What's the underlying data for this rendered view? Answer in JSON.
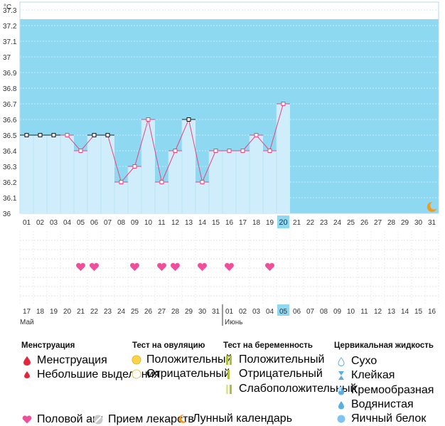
{
  "chart_data": {
    "type": "line",
    "y_unit": "°C",
    "y_ticks": [
      "37.3",
      "37.2",
      "37.1",
      "37",
      "36.9",
      "36.8",
      "36.7",
      "36.6",
      "36.5",
      "36.4",
      "36.3",
      "36.2",
      "36.1",
      "36"
    ],
    "ylim": [
      36.0,
      37.35
    ],
    "cycle_days": [
      "01",
      "02",
      "03",
      "04",
      "05",
      "06",
      "07",
      "08",
      "09",
      "10",
      "11",
      "12",
      "13",
      "14",
      "15",
      "16",
      "17",
      "18",
      "19",
      "20",
      "21",
      "22",
      "23",
      "24",
      "25",
      "26",
      "27",
      "28",
      "29",
      "30",
      "31"
    ],
    "current_day": "20",
    "temperatures": [
      36.5,
      36.5,
      36.5,
      36.5,
      36.4,
      36.5,
      36.5,
      36.2,
      36.3,
      36.6,
      36.2,
      36.4,
      36.6,
      36.2,
      36.4,
      36.4,
      36.4,
      36.5,
      36.4,
      36.7
    ],
    "marker_colors": [
      "black",
      "black",
      "black",
      "pink",
      "pink",
      "black",
      "black",
      "pink",
      "pink",
      "pink",
      "pink",
      "pink",
      "black",
      "pink",
      "pink",
      "pink",
      "pink",
      "pink",
      "pink",
      "pink"
    ],
    "intercourse_days": [
      "05",
      "06",
      "09",
      "11",
      "12",
      "14",
      "16",
      "19"
    ],
    "calendar_dates": [
      "17",
      "18",
      "19",
      "20",
      "21",
      "22",
      "23",
      "24",
      "25",
      "26",
      "27",
      "28",
      "29",
      "30",
      "31",
      "01",
      "02",
      "03",
      "04",
      "05",
      "06",
      "07",
      "08",
      "09",
      "10",
      "11",
      "12",
      "13",
      "14",
      "15",
      "16"
    ],
    "highlight_red_dates_index": [
      4,
      5,
      11,
      12,
      18,
      25,
      26
    ],
    "today_index": 19,
    "month_labels": [
      {
        "label": "Май",
        "index": 0
      },
      {
        "label": "Июнь",
        "index": 15
      }
    ],
    "moon_icon": "crescent-moon-icon",
    "colors": {
      "sky": "#8fd8f2",
      "bar": "#cfedfb",
      "line": "#e8457f",
      "today": "#8fd8f2",
      "heart": "#ef4f9a",
      "red_date": "#d9264a",
      "moon": "#f39a1d"
    }
  },
  "legend": {
    "menstruation": {
      "title": "Менструация",
      "items": [
        "Менструация",
        "Небольшие выделения"
      ]
    },
    "ovulation": {
      "title": "Тест на овуляцию",
      "items": [
        "Положительный",
        "Отрицательный"
      ]
    },
    "pregnancy": {
      "title": "Тест на беременность",
      "items": [
        "Положительный",
        "Отрицательный",
        "Слабоположительный"
      ]
    },
    "cervical": {
      "title": "Цервикальная жидкость",
      "items": [
        "Сухо",
        "Клейкая",
        "Кремообразная",
        "Водянистая",
        "Яичный белок"
      ]
    },
    "bottom": [
      "Половой акт",
      "Прием лекарств",
      "Лунный календарь"
    ]
  }
}
